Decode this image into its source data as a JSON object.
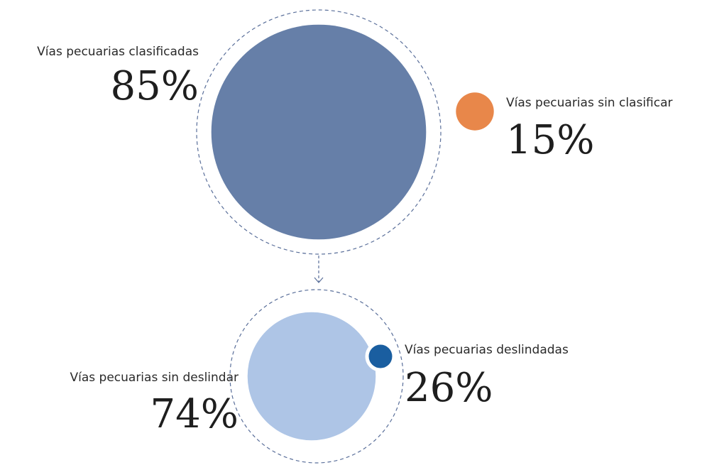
{
  "chart_data": [
    {
      "type": "bubble",
      "categories": [
        "Vías pecuarias clasificadas",
        "Vías pecuarias sin clasificar"
      ],
      "values": [
        85,
        15
      ],
      "value_labels": [
        "85%",
        "15%"
      ],
      "colors": [
        "#667fa8",
        "#e8874a"
      ]
    },
    {
      "type": "bubble",
      "categories": [
        "Vías pecuarias sin deslindar",
        "Vías pecuarias deslindadas"
      ],
      "values": [
        74,
        26
      ],
      "value_labels": [
        "74%",
        "26%"
      ],
      "colors": [
        "#aec5e6",
        "#1a5ea0"
      ]
    }
  ]
}
